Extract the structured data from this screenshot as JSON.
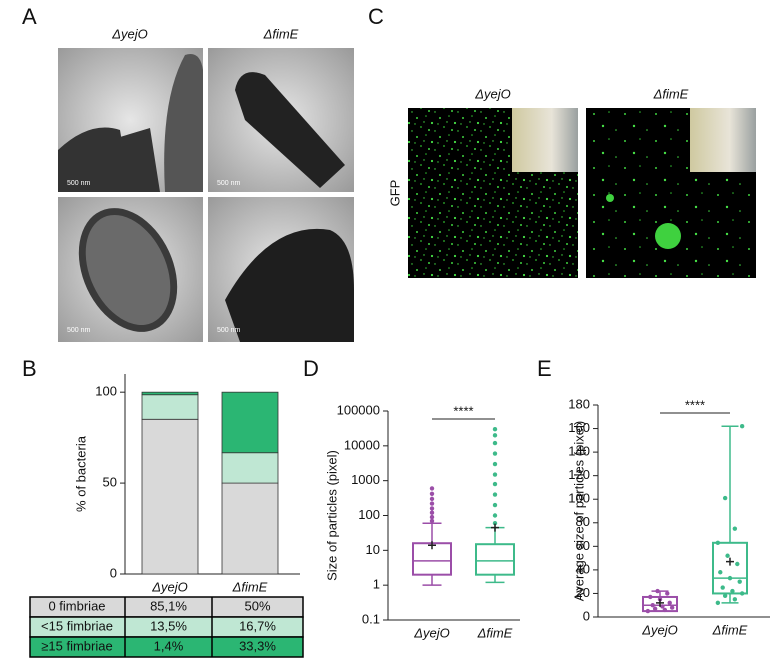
{
  "panel_labels": [
    "A",
    "B",
    "C",
    "D",
    "E"
  ],
  "panel_a": {
    "columns": [
      "ΔyejO",
      "ΔfimE"
    ],
    "scale_bar": "500 nm"
  },
  "panel_c": {
    "columns": [
      "ΔyejO",
      "ΔfimE"
    ],
    "channel": "GFP"
  },
  "chart_data": [
    {
      "type": "stacked_bar",
      "ylabel": "% of bacteria",
      "categories": [
        "ΔyejO",
        "ΔfimE"
      ],
      "series": [
        {
          "name": "0 fimbriae",
          "color": "#d9d9d9",
          "values": [
            85.1,
            50
          ],
          "value_labels": [
            "85,1%",
            "50%"
          ]
        },
        {
          "name": "<15 fimbriae",
          "color": "#bfe7d3",
          "values": [
            13.5,
            16.7
          ],
          "value_labels": [
            "13,5%",
            "16,7%"
          ]
        },
        {
          "name": "≥15 fimbriae",
          "color": "#2bb673",
          "values": [
            1.4,
            33.3
          ],
          "value_labels": [
            "1,4%",
            "33,3%"
          ]
        }
      ],
      "ylim": [
        0,
        110
      ],
      "yticks": [
        0,
        50,
        100
      ]
    },
    {
      "type": "box",
      "ylabel": "Size of particles (pixel)",
      "log": true,
      "categories": [
        "ΔyejO",
        "ΔfimE"
      ],
      "significance": "****",
      "ylim": [
        0.1,
        100000
      ],
      "yticks": [
        0.1,
        1,
        10,
        100,
        1000,
        10000,
        100000
      ],
      "boxes": [
        {
          "color": "#9b4ea8",
          "min": 1,
          "q1": 2,
          "median": 5,
          "q3": 16,
          "max": 60,
          "mean": 14,
          "points": [
            70,
            90,
            120,
            160,
            220,
            300,
            420,
            600
          ]
        },
        {
          "color": "#3dba8a",
          "min": 1.2,
          "q1": 2,
          "median": 5,
          "q3": 15,
          "max": 45,
          "mean": 45,
          "points": [
            60,
            100,
            200,
            400,
            800,
            1500,
            3000,
            6000,
            12000,
            20000,
            30000
          ]
        }
      ]
    },
    {
      "type": "box",
      "ylabel": "Average size of particles (pixel)",
      "log": false,
      "categories": [
        "ΔyejO",
        "ΔfimE"
      ],
      "significance": "****",
      "ylim": [
        0,
        180
      ],
      "yticks": [
        0,
        20,
        40,
        60,
        80,
        100,
        120,
        140,
        160,
        180
      ],
      "boxes": [
        {
          "color": "#9b4ea8",
          "min": 5,
          "q1": 5,
          "median": 10,
          "q3": 17,
          "max": 22,
          "mean": 12,
          "points": [
            5,
            6,
            7,
            8,
            9,
            10,
            12,
            15,
            17,
            20,
            22
          ]
        },
        {
          "color": "#3dba8a",
          "min": 12,
          "q1": 20,
          "median": 33,
          "q3": 63,
          "max": 162,
          "mean": 47,
          "points": [
            12,
            15,
            18,
            20,
            22,
            25,
            30,
            33,
            38,
            45,
            52,
            63,
            75,
            101,
            162
          ]
        }
      ]
    }
  ]
}
